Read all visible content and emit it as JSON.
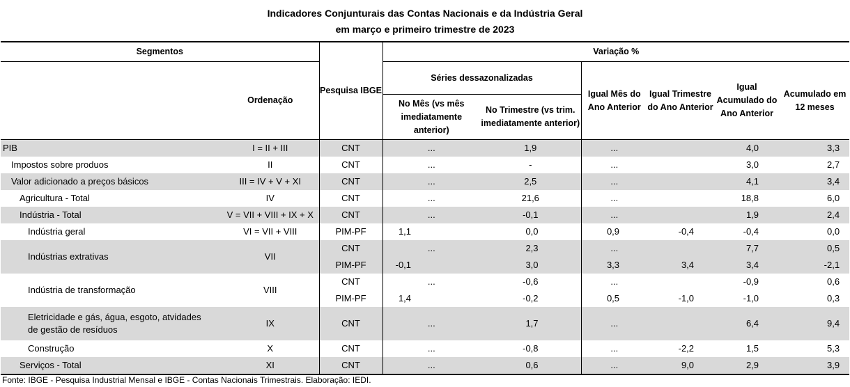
{
  "title": {
    "line1": "Indicadores Conjunturais das Contas Nacionais e da Indústria Geral",
    "line2": "em março e primeiro trimestre de 2023"
  },
  "headers": {
    "segmentos": "Segmentos",
    "variacao": "Variação %",
    "ordenacao": "Ordenação",
    "pesquisa": "Pesquisa IBGE",
    "series_dessaz": "Séries dessazonalizadas",
    "no_mes": "No Mês (vs mês imediatamente anterior)",
    "no_trimestre": "No Trimestre (vs trim. imediatamente anterior)",
    "igual_mes": "Igual Mês do Ano Anterior",
    "igual_trimestre": "Igual Trimestre do Ano Anterior",
    "igual_acumulado": "Igual Acumulado do Ano Anterior",
    "acumulado_12": "Acumulado em 12 meses"
  },
  "rows": {
    "pib": {
      "segment": "PIB",
      "ordenacao": "I = II + III",
      "pesquisa": "CNT",
      "mes": "...",
      "trim": "1,9",
      "igual_mes": "...",
      "igual_trim": "",
      "igual_acum": "4,0",
      "acum12": "3,3"
    },
    "impostos": {
      "segment": "Impostos sobre produos",
      "ordenacao": "II",
      "pesquisa": "CNT",
      "mes": "...",
      "trim": "-",
      "igual_mes": "...",
      "igual_trim": "",
      "igual_acum": "3,0",
      "acum12": "2,7"
    },
    "valor_adicionado": {
      "segment": "Valor adicionado a preços básicos",
      "ordenacao": "III = IV + V + XI",
      "pesquisa": "CNT",
      "mes": "...",
      "trim": "2,5",
      "igual_mes": "...",
      "igual_trim": "",
      "igual_acum": "4,1",
      "acum12": "3,4"
    },
    "agricultura": {
      "segment": "Agricultura - Total",
      "ordenacao": "IV",
      "pesquisa": "CNT",
      "mes": "...",
      "trim": "21,6",
      "igual_mes": "...",
      "igual_trim": "",
      "igual_acum": "18,8",
      "acum12": "6,0"
    },
    "industria_total": {
      "segment": "Indústria - Total",
      "ordenacao": "V = VII + VIII + IX + X",
      "pesquisa": "CNT",
      "mes": "...",
      "trim": "-0,1",
      "igual_mes": "...",
      "igual_trim": "",
      "igual_acum": "1,9",
      "acum12": "2,4"
    },
    "industria_geral": {
      "segment": "Indústria geral",
      "ordenacao": "VI = VII + VIII",
      "pesquisa": "PIM-PF",
      "mes": "1,1",
      "trim": "0,0",
      "igual_mes": "0,9",
      "igual_trim": "-0,4",
      "igual_acum": "-0,4",
      "acum12": "0,0"
    },
    "extrativas": {
      "segment": "Indústrias extrativas",
      "ordenacao": "VII",
      "a": {
        "pesquisa": "CNT",
        "mes": "...",
        "trim": "2,3",
        "igual_mes": "...",
        "igual_trim": "",
        "igual_acum": "7,7",
        "acum12": "0,5"
      },
      "b": {
        "pesquisa": "PIM-PF",
        "mes": "-0,1",
        "trim": "3,0",
        "igual_mes": "3,3",
        "igual_trim": "3,4",
        "igual_acum": "3,4",
        "acum12": "-2,1"
      }
    },
    "transformacao": {
      "segment": "Indústria de transformação",
      "ordenacao": "VIII",
      "a": {
        "pesquisa": "CNT",
        "mes": "...",
        "trim": "-0,6",
        "igual_mes": "...",
        "igual_trim": "",
        "igual_acum": "-0,9",
        "acum12": "0,6"
      },
      "b": {
        "pesquisa": "PIM-PF",
        "mes": "1,4",
        "trim": "-0,2",
        "igual_mes": "0,5",
        "igual_trim": "-1,0",
        "igual_acum": "-1,0",
        "acum12": "0,3"
      }
    },
    "eletricidade": {
      "segment": "Eletricidade e gás, água, esgoto, atvidades de gestão de resíduos",
      "ordenacao": "IX",
      "pesquisa": "CNT",
      "mes": "...",
      "trim": "1,7",
      "igual_mes": "...",
      "igual_trim": "",
      "igual_acum": "6,4",
      "acum12": "9,4"
    },
    "construcao": {
      "segment": "Construção",
      "ordenacao": "X",
      "pesquisa": "CNT",
      "mes": "...",
      "trim": "-0,8",
      "igual_mes": "...",
      "igual_trim": "-2,2",
      "igual_acum": "1,5",
      "acum12": "5,3"
    },
    "servicos": {
      "segment": "Serviços - Total",
      "ordenacao": "XI",
      "pesquisa": "CNT",
      "mes": "...",
      "trim": "0,6",
      "igual_mes": "...",
      "igual_trim": "9,0",
      "igual_acum": "2,9",
      "acum12": "3,9"
    }
  },
  "footer": "Fonte: IBGE - Pesquisa Industrial Mensal e IBGE - Contas Nacionais Trimestrais. Elaboração: IEDI."
}
